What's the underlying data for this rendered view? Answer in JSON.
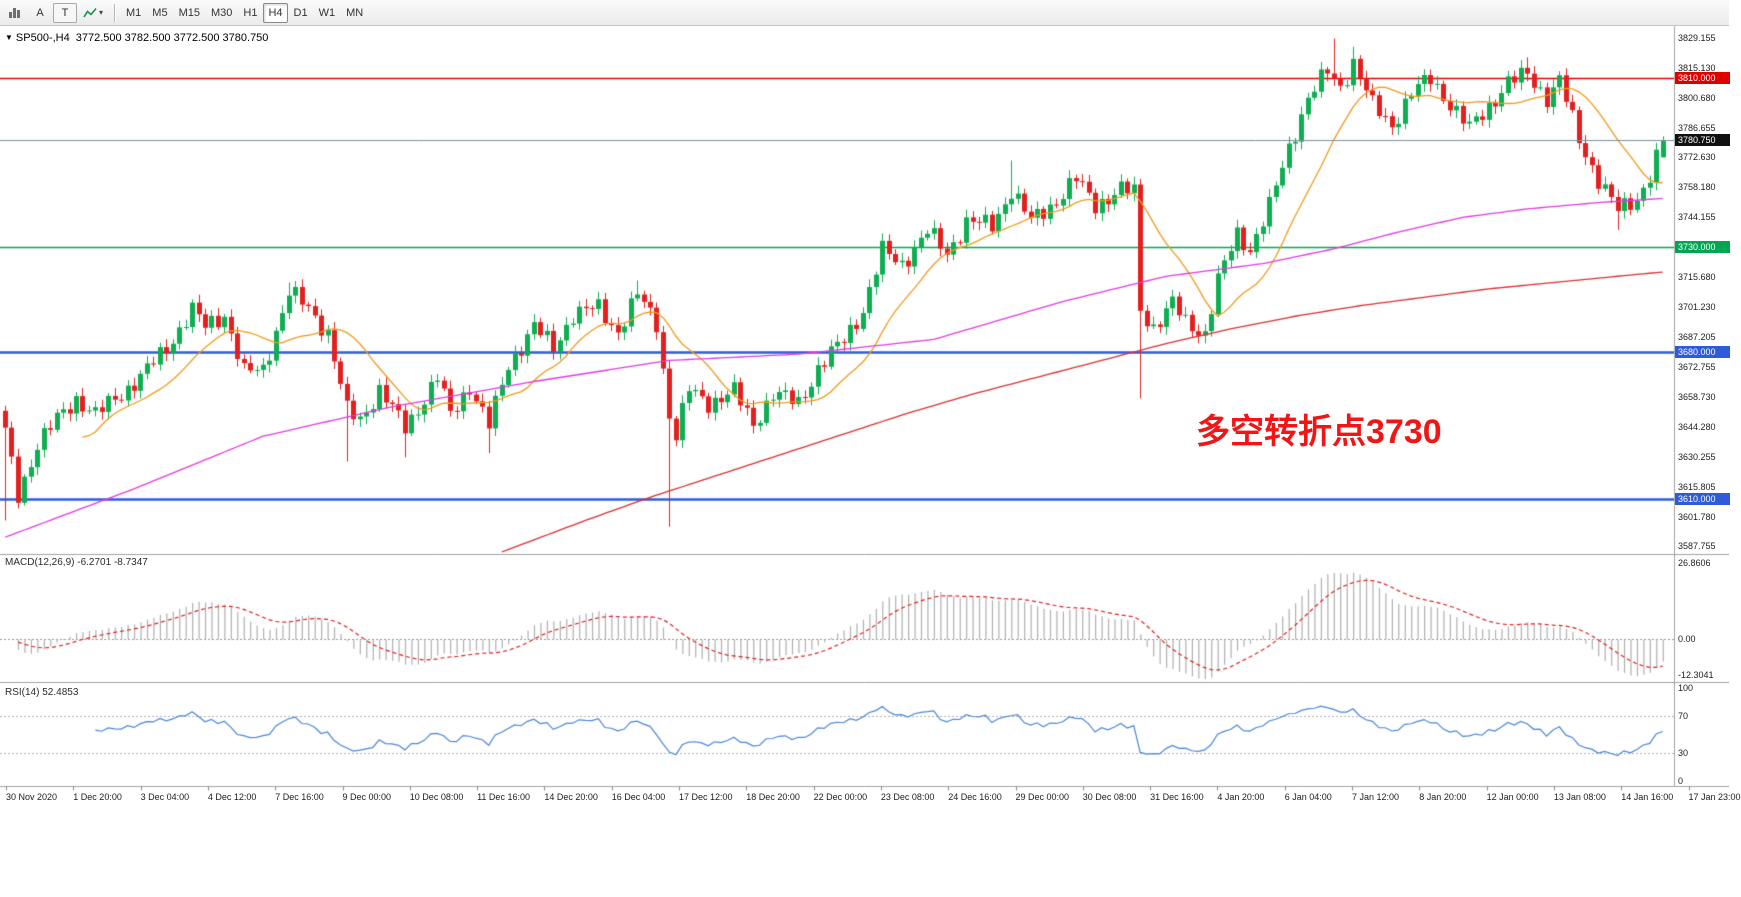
{
  "toolbar": {
    "a_label": "A",
    "t_label": "T",
    "caret": "▾",
    "timeframes": [
      "M1",
      "M5",
      "M15",
      "M30",
      "H1",
      "H4",
      "D1",
      "W1",
      "MN"
    ],
    "active_timeframe": "H4"
  },
  "chart": {
    "symbol_title": "SP500-,H4",
    "ohlc_text": "3772.500 3782.500 3772.500 3780.750",
    "dropdown_glyph": "▼",
    "annotation": "多空转折点3730",
    "annotation_color": "#f21515",
    "price_badges": [
      {
        "text": "3810.000",
        "value": 3810.0,
        "bg": "#e00000"
      },
      {
        "text": "3780.750",
        "value": 3780.75,
        "bg": "#111111"
      },
      {
        "text": "3730.000",
        "value": 3730.0,
        "bg": "#00a651"
      },
      {
        "text": "3680.000",
        "value": 3680.0,
        "bg": "#2e5bda"
      },
      {
        "text": "3610.000",
        "value": 3610.0,
        "bg": "#2e5bda"
      }
    ]
  },
  "macd_panel": {
    "label": "MACD(12,26,9) -6.2701 -8.7347",
    "axis_labels": [
      {
        "text": "26.8606",
        "value": 26.8606
      },
      {
        "text": "0.00",
        "value": 0
      },
      {
        "text": "-12.3041",
        "value": -12.3041
      }
    ]
  },
  "rsi_panel": {
    "label": "RSI(14) 52.4853",
    "axis_labels": [
      {
        "text": "100",
        "value": 100
      },
      {
        "text": "70",
        "value": 70
      },
      {
        "text": "30",
        "value": 30
      },
      {
        "text": "0",
        "value": 0
      }
    ]
  },
  "chart_data": {
    "type": "candlestick",
    "symbol": "SP500-",
    "timeframe": "H4",
    "ylim": [
      3585,
      3833
    ],
    "candle_count": 258,
    "up_color": "#0fae52",
    "down_color": "#e32020",
    "last_ohlc": {
      "open": 3772.5,
      "high": 3782.5,
      "low": 3772.5,
      "close": 3780.75
    },
    "y_labels": [
      "3829.155",
      "3815.130",
      "3800.680",
      "3786.655",
      "3772.630",
      "3758.180",
      "3744.155",
      "3715.680",
      "3701.230",
      "3687.205",
      "3672.755",
      "3658.730",
      "3644.280",
      "3630.255",
      "3615.805",
      "3601.780",
      "3587.755"
    ],
    "x_labels": [
      "30 Nov 2020",
      "1 Dec 20:00",
      "3 Dec 04:00",
      "4 Dec 12:00",
      "7 Dec 16:00",
      "9 Dec 00:00",
      "10 Dec 08:00",
      "11 Dec 16:00",
      "14 Dec 20:00",
      "16 Dec 04:00",
      "17 Dec 12:00",
      "18 Dec 20:00",
      "22 Dec 00:00",
      "23 Dec 08:00",
      "24 Dec 16:00",
      "29 Dec 00:00",
      "30 Dec 08:00",
      "31 Dec 16:00",
      "4 Jan 20:00",
      "6 Jan 04:00",
      "7 Jan 12:00",
      "8 Jan 20:00",
      "12 Jan 00:00",
      "13 Jan 08:00",
      "14 Jan 16:00",
      "17 Jan 23:00"
    ],
    "close_anchors": [
      [
        0,
        3642
      ],
      [
        2,
        3612
      ],
      [
        5,
        3636
      ],
      [
        8,
        3648
      ],
      [
        11,
        3658
      ],
      [
        14,
        3650
      ],
      [
        17,
        3658
      ],
      [
        21,
        3668
      ],
      [
        25,
        3682
      ],
      [
        29,
        3700
      ],
      [
        31,
        3692
      ],
      [
        34,
        3698
      ],
      [
        37,
        3670
      ],
      [
        40,
        3672
      ],
      [
        44,
        3708
      ],
      [
        47,
        3701
      ],
      [
        50,
        3689
      ],
      [
        53,
        3652
      ],
      [
        55,
        3648
      ],
      [
        58,
        3662
      ],
      [
        62,
        3644
      ],
      [
        65,
        3658
      ],
      [
        67,
        3668
      ],
      [
        69,
        3650
      ],
      [
        72,
        3664
      ],
      [
        75,
        3645
      ],
      [
        78,
        3674
      ],
      [
        82,
        3692
      ],
      [
        85,
        3682
      ],
      [
        88,
        3698
      ],
      [
        92,
        3701
      ],
      [
        95,
        3690
      ],
      [
        98,
        3707
      ],
      [
        101,
        3694
      ],
      [
        103,
        3650
      ],
      [
        104,
        3640
      ],
      [
        106,
        3662
      ],
      [
        109,
        3656
      ],
      [
        113,
        3661
      ],
      [
        116,
        3646
      ],
      [
        119,
        3660
      ],
      [
        123,
        3656
      ],
      [
        126,
        3672
      ],
      [
        130,
        3686
      ],
      [
        133,
        3700
      ],
      [
        136,
        3728
      ],
      [
        139,
        3722
      ],
      [
        143,
        3737
      ],
      [
        146,
        3727
      ],
      [
        149,
        3742
      ],
      [
        153,
        3740
      ],
      [
        156,
        3757
      ],
      [
        159,
        3742
      ],
      [
        163,
        3752
      ],
      [
        166,
        3762
      ],
      [
        169,
        3750
      ],
      [
        173,
        3757
      ],
      [
        175,
        3756
      ],
      [
        176,
        3700
      ],
      [
        178,
        3692
      ],
      [
        181,
        3703
      ],
      [
        183,
        3694
      ],
      [
        186,
        3689
      ],
      [
        188,
        3714
      ],
      [
        191,
        3736
      ],
      [
        193,
        3729
      ],
      [
        196,
        3749
      ],
      [
        199,
        3777
      ],
      [
        202,
        3801
      ],
      [
        205,
        3813
      ],
      [
        207,
        3806
      ],
      [
        209,
        3818
      ],
      [
        212,
        3797
      ],
      [
        215,
        3788
      ],
      [
        218,
        3803
      ],
      [
        221,
        3810
      ],
      [
        224,
        3798
      ],
      [
        227,
        3786
      ],
      [
        230,
        3797
      ],
      [
        233,
        3808
      ],
      [
        236,
        3812
      ],
      [
        239,
        3801
      ],
      [
        241,
        3809
      ],
      [
        244,
        3781
      ],
      [
        247,
        3762
      ],
      [
        250,
        3747
      ],
      [
        253,
        3753
      ],
      [
        255,
        3764
      ],
      [
        257,
        3780
      ]
    ],
    "wick_overrides": [
      [
        0,
        "low",
        3600
      ],
      [
        44,
        "high",
        3713
      ],
      [
        53,
        "low",
        3628
      ],
      [
        62,
        "low",
        3630
      ],
      [
        75,
        "low",
        3632
      ],
      [
        98,
        "high",
        3714
      ],
      [
        103,
        "low",
        3597
      ],
      [
        156,
        "high",
        3771
      ],
      [
        176,
        "low",
        3658
      ],
      [
        206,
        "high",
        3829
      ],
      [
        209,
        "high",
        3825
      ],
      [
        236,
        "high",
        3820
      ],
      [
        250,
        "low",
        3738
      ]
    ],
    "levels": [
      {
        "price": 3810,
        "color": "#e00000",
        "width": 1.4
      },
      {
        "price": 3730,
        "color": "#00a651",
        "width": 1.6
      },
      {
        "price": 3680,
        "color": "#2e5bda",
        "width": 2.4
      },
      {
        "price": 3610,
        "color": "#2e5bda",
        "width": 2.4
      }
    ],
    "current_price": {
      "value": 3780.75,
      "line_color": "#7d8fa3"
    },
    "moving_averages": {
      "fast": {
        "period": 13,
        "color": "#f09a1d"
      },
      "mid": {
        "color": "#e23ae2",
        "anchors": [
          [
            0,
            3592
          ],
          [
            20,
            3615
          ],
          [
            40,
            3640
          ],
          [
            60,
            3654
          ],
          [
            82,
            3666
          ],
          [
            103,
            3676
          ],
          [
            123,
            3679
          ],
          [
            144,
            3686
          ],
          [
            164,
            3704
          ],
          [
            180,
            3716
          ],
          [
            195,
            3722
          ],
          [
            206,
            3729
          ],
          [
            216,
            3737
          ],
          [
            226,
            3744
          ],
          [
            236,
            3748
          ],
          [
            247,
            3751
          ],
          [
            257,
            3753
          ]
        ]
      },
      "slow": {
        "color": "#d93030",
        "anchors": [
          [
            77,
            3585
          ],
          [
            90,
            3600
          ],
          [
            100,
            3611
          ],
          [
            110,
            3621
          ],
          [
            120,
            3631
          ],
          [
            130,
            3641
          ],
          [
            140,
            3651
          ],
          [
            150,
            3660
          ],
          [
            160,
            3668
          ],
          [
            170,
            3676
          ],
          [
            180,
            3684
          ],
          [
            190,
            3691
          ],
          [
            200,
            3697
          ],
          [
            210,
            3702
          ],
          [
            220,
            3706
          ],
          [
            230,
            3710
          ],
          [
            240,
            3713
          ],
          [
            250,
            3716
          ],
          [
            257,
            3718
          ]
        ]
      }
    },
    "macd": {
      "fast": 12,
      "slow": 26,
      "signal": 9,
      "main_value": -6.2701,
      "signal_value": -8.7347,
      "ylim": [
        -13.5,
        28.5
      ],
      "hist_color": "#b0b0b0",
      "signal_color": "#e02020"
    },
    "rsi": {
      "period": 14,
      "value": 52.4853,
      "color": "#4a86d8",
      "levels": [
        70,
        30
      ]
    }
  }
}
